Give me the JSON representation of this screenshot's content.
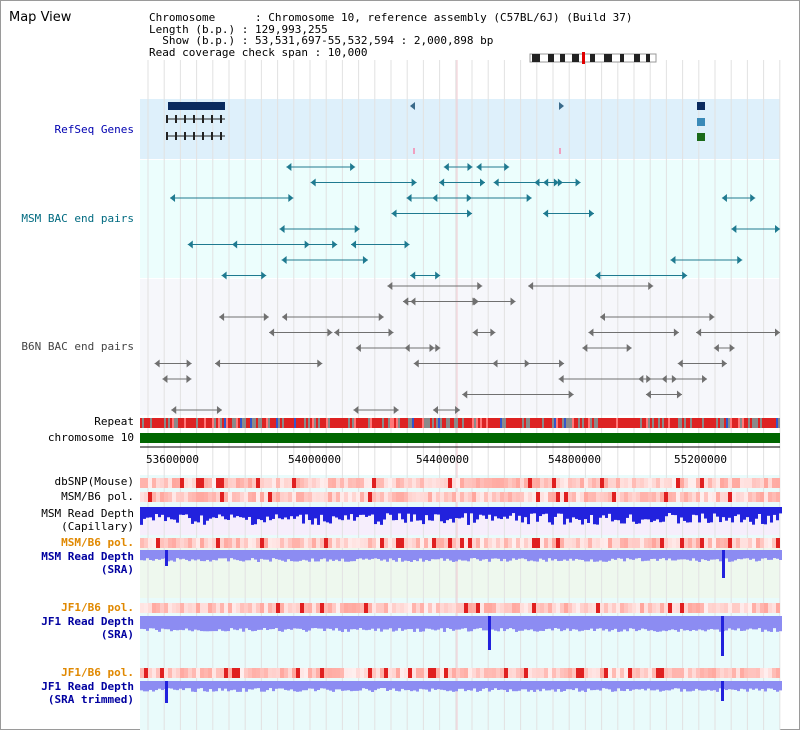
{
  "view_title": "Map View",
  "info": {
    "line1": "Chromosome      : Chromosome 10, reference assembly (C57BL/6J) (Build 37)",
    "line2": "Length (b.p.) : 129,993,255",
    "line3": "  Show (b.p.) : 53,531,697-55,532,594 : 2,000,898 bp",
    "line4": "Read coverage check span : 10,000"
  },
  "tracks": {
    "refseq": "RefSeq Genes",
    "msm_bac": "MSM BAC end pairs",
    "b6n_bac": "B6N BAC end pairs",
    "repeat": "Repeat",
    "chromosome": "chromosome 10",
    "dbsnp": "dbSNP(Mouse)",
    "msm_pol_1": "MSM/B6 pol.",
    "msm_depth_cap_1": "MSM Read Depth",
    "msm_depth_cap_2": "(Capillary)",
    "msm_pol_2": "MSM/B6 pol.",
    "msm_depth_sra_1": "MSM Read Depth",
    "msm_depth_sra_2": "(SRA)",
    "jf1_pol_1": "JF1/B6 pol.",
    "jf1_depth_sra_1": "JF1 Read Depth",
    "jf1_depth_sra_2": "(SRA)",
    "jf1_pol_2": "JF1/B6 pol.",
    "jf1_depth_trim_1": "JF1 Read Depth",
    "jf1_depth_trim_2": "(SRA trimmed)"
  },
  "axis": {
    "ticks": [
      "53600000",
      "54000000",
      "54400000",
      "54800000",
      "55200000"
    ]
  },
  "colors": {
    "refseq_bg": "#def0fb",
    "msm_bg": "#ecfefd",
    "b6n_bg": "#f6f7fb",
    "msm_label": "#006a80",
    "refseq_label": "#0000b0",
    "depth_label": "#0000a0",
    "pol_label": "#e08800",
    "chromosome": "#006600",
    "depth_bar": "#8c8cf2",
    "depth_dark": "#2222dd"
  }
}
